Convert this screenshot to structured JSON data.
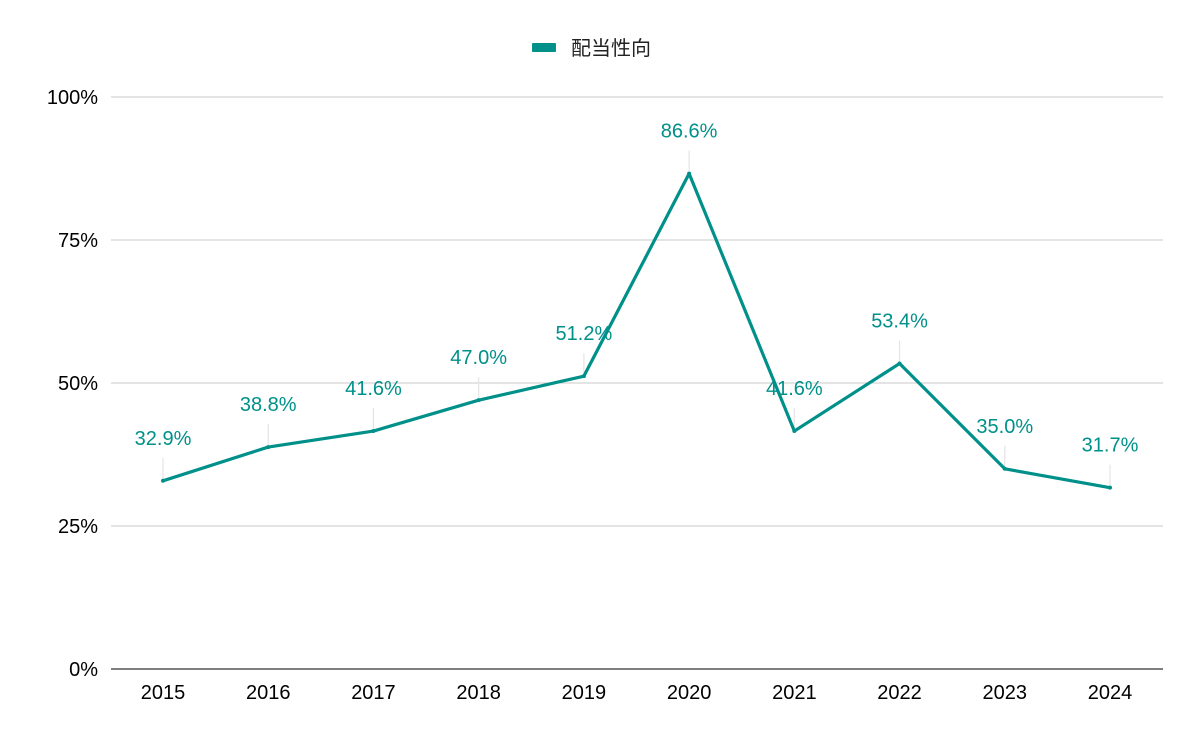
{
  "chart_data": {
    "type": "line",
    "categories": [
      "2015",
      "2016",
      "2017",
      "2018",
      "2019",
      "2020",
      "2021",
      "2022",
      "2023",
      "2024"
    ],
    "series": [
      {
        "name": "配当性向",
        "values": [
          32.9,
          38.8,
          41.6,
          47.0,
          51.2,
          86.6,
          41.6,
          53.4,
          35.0,
          31.7
        ],
        "data_labels": [
          "32.9%",
          "38.8%",
          "41.6%",
          "47.0%",
          "51.2%",
          "86.6%",
          "41.6%",
          "53.4%",
          "35.0%",
          "31.7%"
        ],
        "color": "#00908A"
      }
    ],
    "yticks": [
      0,
      25,
      50,
      75,
      100
    ],
    "ytick_labels": [
      "0%",
      "25%",
      "50%",
      "75%",
      "100%"
    ],
    "ylim": [
      0,
      100
    ],
    "grid": true,
    "legend_position": "top-center",
    "title": "",
    "xlabel": "",
    "ylabel": ""
  },
  "colors": {
    "series": "#00908A",
    "gridline": "#C8C8C8",
    "axis": "#333333",
    "label_tick": "#E4E4E4"
  }
}
